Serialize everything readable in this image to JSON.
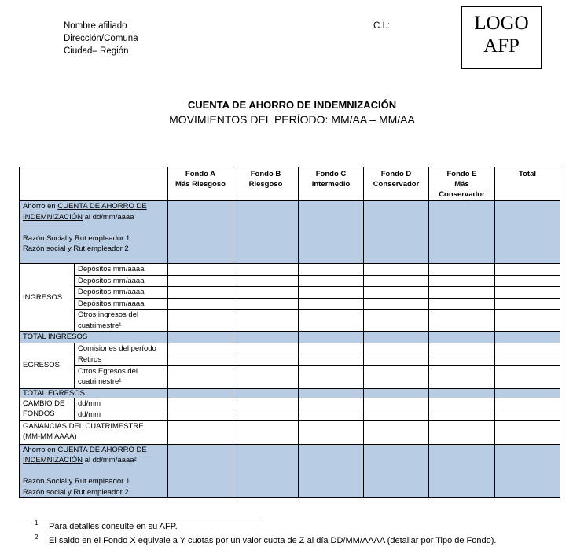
{
  "header": {
    "lines": [
      "Nombre afiliado",
      "Dirección/Comuna",
      "Ciudad– Región"
    ],
    "ci_label": "C.I.:",
    "logo": [
      "LOGO",
      "AFP"
    ]
  },
  "title": "CUENTA DE AHORRO DE INDEMNIZACIÓN",
  "subtitle": "MOVIMIENTOS DEL PERÍODO: MM/AA – MM/AA",
  "columns": [
    [
      "Fondo A",
      "Más Riesgoso"
    ],
    [
      "Fondo B",
      "Riesgoso"
    ],
    [
      "Fondo C",
      "Intermedio"
    ],
    [
      "Fondo D",
      "Conservador"
    ],
    [
      "Fondo E",
      "Más Conservador"
    ],
    [
      "Total",
      ""
    ]
  ],
  "rows": {
    "saldo_inicial": {
      "pre": "Ahorro en ",
      "link": "CUENTA DE AHORRO DE INDEMNIZACIÓN",
      "post": " al dd/mm/aaaa",
      "emp1": "Razón Social y Rut empleador 1",
      "emp2": "Razón social y Rut empleador 2"
    },
    "ingresos": {
      "label": "INGRESOS",
      "items": [
        "Depósitos mm/aaaa",
        "Depósitos mm/aaaa",
        "Depósitos  mm/aaaa",
        "Depósitos  mm/aaaa",
        "Otros ingresos del cuatrimestre¹"
      ]
    },
    "total_ingresos": "TOTAL INGRESOS",
    "egresos": {
      "label": "EGRESOS",
      "items": [
        "Comisiones del período",
        "Retiros",
        "Otros Egresos del cuatrimestre¹"
      ]
    },
    "total_egresos": "TOTAL EGRESOS",
    "cambio": {
      "label": "CAMBIO DE FONDOS",
      "items": [
        "dd/mm",
        "dd/mm"
      ]
    },
    "ganancias": "GANANCIAS DEL CUATRIMESTRE (MM-MM AAAA)",
    "saldo_final": {
      "pre": "Ahorro en ",
      "link": "CUENTA DE AHORRO DE INDEMNIZACIÓN",
      "post": " al dd/mm/aaaa²",
      "emp1": "Razón Social y Rut empleador 1",
      "emp2": "Razón social y Rut empleador 2"
    }
  },
  "footnotes": [
    {
      "n": "1",
      "text": "Para detalles consulte en su AFP."
    },
    {
      "n": "2",
      "text": "El saldo en el Fondo X equivale a Y cuotas por un valor cuota de Z al día DD/MM/AAAA (detallar por Tipo de Fondo)."
    }
  ],
  "colors": {
    "shade": "#b8cce4"
  }
}
